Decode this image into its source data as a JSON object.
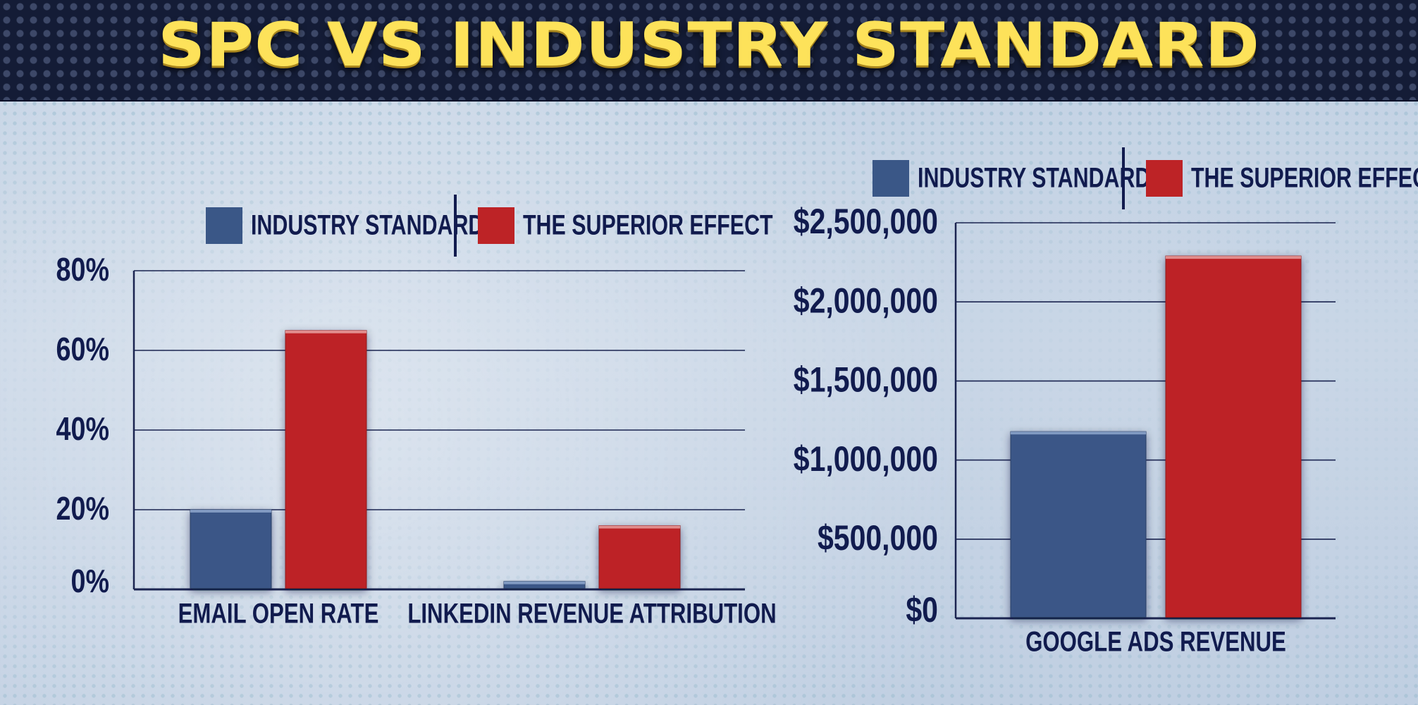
{
  "title": "SPC VS INDUSTRY STANDARD",
  "colors": {
    "industry": "#3a5787",
    "superior": "#bd2326",
    "text": "#111b4e",
    "title": "#fde25a",
    "banner": "#141c36"
  },
  "chart_data": [
    {
      "type": "bar",
      "title": "",
      "xlabel": "",
      "ylabel": "",
      "categories": [
        "EMAIL OPEN RATE",
        "LINKEDIN REVENUE ATTRIBUTION"
      ],
      "series": [
        {
          "name": "INDUSTRY STANDARD",
          "values": [
            20,
            2
          ]
        },
        {
          "name": "THE SUPERIOR EFFECT",
          "values": [
            65,
            16
          ]
        }
      ],
      "ylim": [
        0,
        80
      ],
      "yticks": [
        "0%",
        "20%",
        "40%",
        "60%",
        "80%"
      ],
      "grid": true,
      "legend": "top"
    },
    {
      "type": "bar",
      "title": "",
      "xlabel": "",
      "ylabel": "",
      "categories": [
        "GOOGLE ADS REVENUE"
      ],
      "series": [
        {
          "name": "INDUSTRY STANDARD",
          "values": [
            1180000
          ]
        },
        {
          "name": "THE SUPERIOR EFFECT",
          "values": [
            2290000
          ]
        }
      ],
      "ylim": [
        0,
        2500000
      ],
      "yticks": [
        "$0",
        "$500,000",
        "$1,000,000",
        "$1,500,000",
        "$2,000,000",
        "$2,500,000"
      ],
      "grid": true,
      "legend": "top"
    }
  ]
}
